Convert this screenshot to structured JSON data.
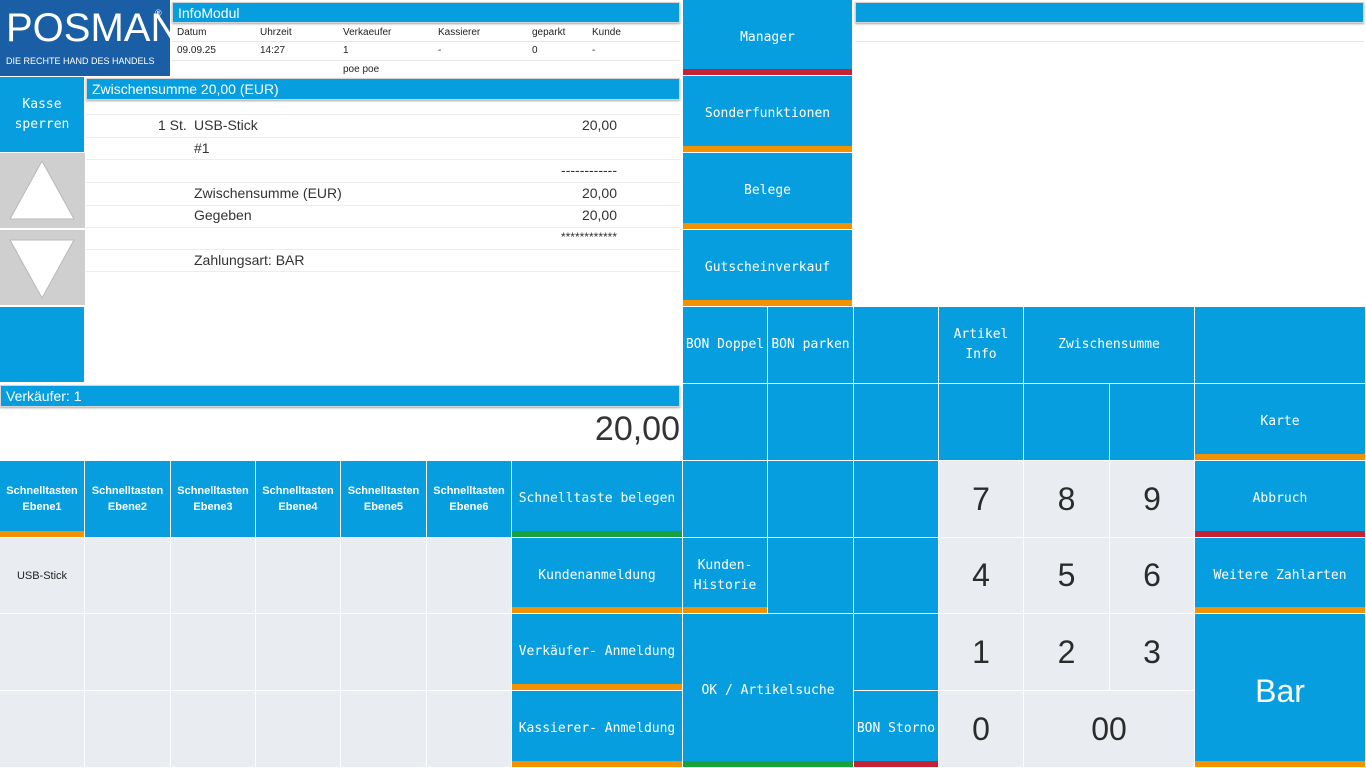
{
  "brand": {
    "name": "POSMAN",
    "tagline": "DIE RECHTE HAND DES HANDELS",
    "reg": "®"
  },
  "infomodul": {
    "title": "InfoModul",
    "headers": [
      "Datum",
      "Uhrzeit",
      "Verkaeufer",
      "Kassierer",
      "geparkt",
      "Kunde"
    ],
    "values": [
      "09.09.25",
      "14:27",
      "1",
      "-",
      "0",
      "-"
    ],
    "extra": "poe poe"
  },
  "receipt": {
    "title": "Zwischensumme 20,00 (EUR)",
    "rows": [
      {
        "qty": "1 St.",
        "text": "USB-Stick",
        "amount": "20,00"
      },
      {
        "qty": "",
        "text": "#1",
        "amount": ""
      },
      {
        "qty": "",
        "text": "",
        "amount": "------------"
      },
      {
        "qty": "",
        "text": "Zwischensumme (EUR)",
        "amount": "20,00"
      },
      {
        "qty": "",
        "text": "Gegeben",
        "amount": "20,00"
      },
      {
        "qty": "",
        "text": "",
        "amount": "************"
      },
      {
        "qty": "",
        "text": "Zahlungsart: BAR",
        "amount": ""
      }
    ]
  },
  "left": {
    "lock_label": "Kasse sperren",
    "up_icon": "triangle-up",
    "down_icon": "triangle-down"
  },
  "seller": {
    "label": "Verkäufer: 1",
    "total": "20,00"
  },
  "topright": {
    "title": ""
  },
  "menu": {
    "manager": "Manager",
    "sonder": "Sonderfunktionen",
    "belege": "Belege",
    "gutschein": "Gutscheinverkauf"
  },
  "functions": {
    "bon_doppel": "BON Doppel",
    "bon_parken": "BON parken",
    "artikel_info": "Artikel\nInfo",
    "zwischensumme": "Zwischensumme",
    "karte": "Karte",
    "abbruch": "Abbruch",
    "weitere": "Weitere Zahlarten",
    "bar": "Bar",
    "schnelltaste_belegen": "Schnelltaste belegen",
    "kundenanmeldung": "Kundenanmeldung",
    "verkaeufer_anmeldung": "Verkäufer- Anmeldung",
    "kassierer_anmeldung": "Kassierer- Anmeldung",
    "kunden_historie": "Kunden-\nHistorie",
    "ok_artikelsuche": "OK / Artikelsuche",
    "bon_storno": "BON Storno"
  },
  "numpad": [
    "7",
    "8",
    "9",
    "4",
    "5",
    "6",
    "1",
    "2",
    "3",
    "0",
    "00"
  ],
  "schnelltasten": [
    "Schnelltasten\nEbene1",
    "Schnelltasten\nEbene2",
    "Schnelltasten\nEbene3",
    "Schnelltasten\nEbene4",
    "Schnelltasten\nEbene5",
    "Schnelltasten\nEbene6"
  ],
  "quickkeys": [
    "USB-Stick"
  ],
  "colors": {
    "blue": "#079ee0",
    "orange": "#f39200",
    "red": "#c62134",
    "green": "#1aa23a",
    "grey": "#e9ecf0",
    "logo": "#1a5fa5"
  }
}
